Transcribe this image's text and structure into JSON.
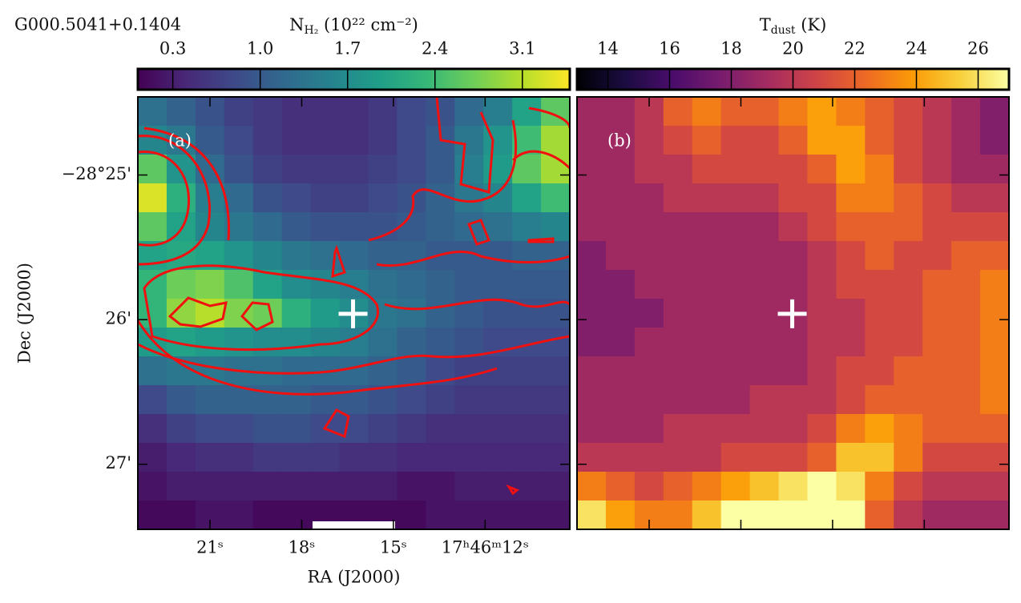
{
  "chart_data": [
    {
      "type": "heatmap",
      "title": "G000.5041+0.1404",
      "panel_label": "(a)",
      "xlabel": "RA (J2000)",
      "ylabel": "Dec (J2000)",
      "colormap": "viridis",
      "colorbar": {
        "label_main": "N",
        "label_sub": "H₂",
        "label_rest": " (10²² cm⁻²)",
        "clim": [
          0.02,
          3.48
        ],
        "ticks": [
          0.3,
          {
            "value": 1,
            "label": "1.0"
          },
          1.7,
          2.4,
          3.1
        ]
      },
      "xlim": [
        23.36,
        9.23
      ],
      "ylim": [
        24.46,
        27.45
      ],
      "xticks": [
        {
          "value": 21,
          "label": "21ˢ"
        },
        {
          "value": 18,
          "label": "18ˢ"
        },
        {
          "value": 15,
          "label": "15ˢ"
        },
        {
          "value": 12,
          "label": "17ʰ46ᵐ12ˢ"
        }
      ],
      "yticks": [
        {
          "value": 25,
          "label": "−28°25'"
        },
        {
          "value": 26,
          "label": "26'"
        },
        {
          "value": 27,
          "label": "27'"
        }
      ],
      "source_position": {
        "x": 16.32,
        "y": 25.96
      },
      "z": [
        [
          1.3,
          1.1,
          0.9,
          0.7,
          0.6,
          0.5,
          0.5,
          0.5,
          0.6,
          0.8,
          0.9,
          1.2,
          1.5,
          2.0,
          2.6
        ],
        [
          1.6,
          1.4,
          1.0,
          0.8,
          0.6,
          0.5,
          0.5,
          0.5,
          0.6,
          0.8,
          1.0,
          1.4,
          1.8,
          2.4,
          3.0
        ],
        [
          2.6,
          1.8,
          1.2,
          0.9,
          0.7,
          0.6,
          0.6,
          0.6,
          0.7,
          0.8,
          1.0,
          1.5,
          1.9,
          2.6,
          3.0
        ],
        [
          3.3,
          2.2,
          1.5,
          1.2,
          0.9,
          0.8,
          0.7,
          0.7,
          0.8,
          0.9,
          1.1,
          1.4,
          1.6,
          2.0,
          2.4
        ],
        [
          2.6,
          2.0,
          1.6,
          1.4,
          1.2,
          1.0,
          0.9,
          0.9,
          0.9,
          1.0,
          1.1,
          1.2,
          1.3,
          1.5,
          1.6
        ],
        [
          2.0,
          2.1,
          2.0,
          1.8,
          1.6,
          1.4,
          1.3,
          1.2,
          1.1,
          1.1,
          1.0,
          1.0,
          1.0,
          1.1,
          1.1
        ],
        [
          2.3,
          2.7,
          2.8,
          2.5,
          2.0,
          1.7,
          1.6,
          1.5,
          1.3,
          1.2,
          1.1,
          1.0,
          1.0,
          1.0,
          1.0
        ],
        [
          2.3,
          2.9,
          3.1,
          2.8,
          2.7,
          2.2,
          1.9,
          1.7,
          1.4,
          1.3,
          1.1,
          1.0,
          0.9,
          0.9,
          0.9
        ],
        [
          1.9,
          2.0,
          1.9,
          1.8,
          1.7,
          1.7,
          1.6,
          1.5,
          1.3,
          1.1,
          1.0,
          0.9,
          0.8,
          0.8,
          0.8
        ],
        [
          1.3,
          1.4,
          1.4,
          1.3,
          1.3,
          1.2,
          1.2,
          1.2,
          1.1,
          1.0,
          0.8,
          0.7,
          0.7,
          0.7,
          0.7
        ],
        [
          0.8,
          1.0,
          1.1,
          1.1,
          1.1,
          1.1,
          1.0,
          1.0,
          0.9,
          0.8,
          0.7,
          0.6,
          0.6,
          0.6,
          0.6
        ],
        [
          0.5,
          0.7,
          0.8,
          0.8,
          0.9,
          0.9,
          0.8,
          0.8,
          0.7,
          0.6,
          0.5,
          0.5,
          0.5,
          0.5,
          0.5
        ],
        [
          0.3,
          0.4,
          0.5,
          0.5,
          0.6,
          0.6,
          0.6,
          0.5,
          0.5,
          0.4,
          0.4,
          0.4,
          0.4,
          0.4,
          0.4
        ],
        [
          0.2,
          0.3,
          0.3,
          0.3,
          0.3,
          0.3,
          0.3,
          0.3,
          0.3,
          0.2,
          0.2,
          0.3,
          0.3,
          0.3,
          0.3
        ],
        [
          0.1,
          0.1,
          0.2,
          0.2,
          0.1,
          0.1,
          0.1,
          0.1,
          0.1,
          0.1,
          0.2,
          0.2,
          0.2,
          0.2,
          0.2
        ]
      ]
    },
    {
      "type": "heatmap",
      "panel_label": "(b)",
      "colormap": "inferno",
      "colorbar": {
        "label_main": "T",
        "label_sub": "dust",
        "label_rest": " (K)",
        "clim": [
          13,
          27
        ],
        "ticks": [
          14,
          16,
          18,
          20,
          22,
          24,
          26
        ]
      },
      "xlim": [
        23.36,
        9.23
      ],
      "ylim": [
        24.46,
        27.45
      ],
      "xticks": [
        21,
        18,
        15,
        12
      ],
      "yticks": [
        25,
        26,
        27
      ],
      "source_position": {
        "x": 16.32,
        "y": 25.96
      },
      "z": [
        [
          19,
          19,
          20,
          22,
          23,
          22,
          22,
          23,
          24,
          23,
          22,
          21,
          20,
          19,
          18
        ],
        [
          19,
          19,
          20,
          21,
          22,
          21,
          21,
          22,
          24,
          24,
          22,
          21,
          20,
          19,
          18
        ],
        [
          19,
          19,
          20,
          20,
          21,
          21,
          21,
          21,
          22,
          24,
          23,
          21,
          20,
          19,
          19
        ],
        [
          19,
          19,
          19,
          20,
          20,
          20,
          20,
          21,
          21,
          23,
          23,
          22,
          21,
          20,
          20
        ],
        [
          19,
          19,
          19,
          19,
          19,
          19,
          19,
          20,
          21,
          22,
          22,
          22,
          21,
          21,
          21
        ],
        [
          18,
          19,
          19,
          19,
          19,
          19,
          19,
          19,
          20,
          21,
          22,
          21,
          21,
          22,
          22
        ],
        [
          18,
          18,
          19,
          19,
          19,
          19,
          19,
          19,
          20,
          21,
          21,
          21,
          22,
          22,
          23
        ],
        [
          18,
          18,
          18,
          19,
          19,
          19,
          19,
          19,
          20,
          20,
          21,
          21,
          22,
          22,
          23
        ],
        [
          18,
          18,
          19,
          19,
          19,
          19,
          19,
          19,
          20,
          20,
          21,
          21,
          22,
          22,
          23
        ],
        [
          19,
          19,
          19,
          19,
          19,
          19,
          19,
          19,
          20,
          21,
          21,
          22,
          22,
          22,
          23
        ],
        [
          19,
          19,
          19,
          19,
          19,
          19,
          20,
          20,
          20,
          21,
          22,
          22,
          22,
          22,
          23
        ],
        [
          19,
          19,
          19,
          20,
          20,
          20,
          20,
          20,
          21,
          23,
          24,
          23,
          22,
          22,
          22
        ],
        [
          20,
          20,
          20,
          20,
          20,
          21,
          21,
          21,
          22,
          25,
          25,
          23,
          21,
          21,
          21
        ],
        [
          23,
          22,
          21,
          22,
          23,
          24,
          25,
          26,
          27,
          26,
          23,
          21,
          20,
          20,
          20
        ],
        [
          26,
          24,
          23,
          23,
          25,
          27,
          27,
          27,
          27,
          27,
          22,
          20,
          19,
          19,
          19
        ]
      ]
    }
  ]
}
